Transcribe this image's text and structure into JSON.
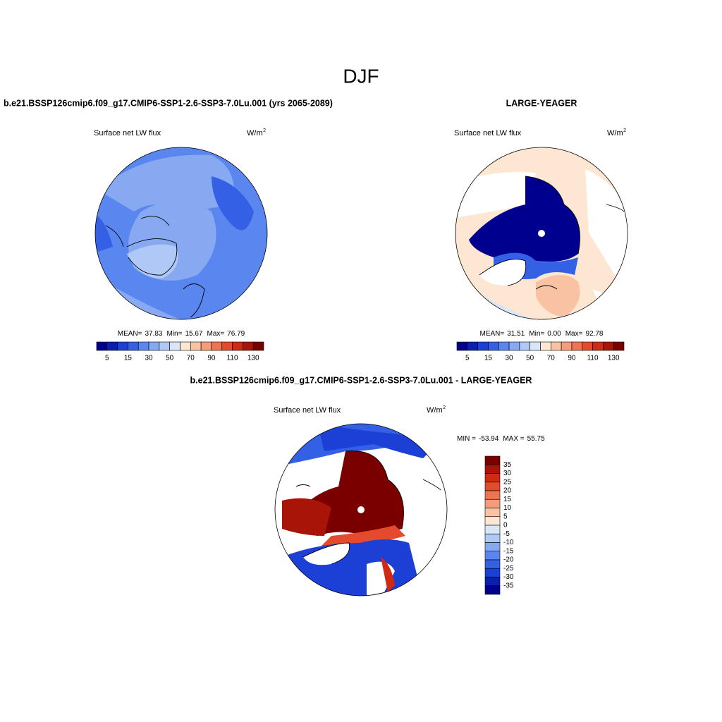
{
  "chart_data": [
    {
      "type": "map",
      "suptitle": "DJF",
      "title": "b.e21.BSSP126cmip6.f09_g17.CMIP6-SSP1-2.6-SSP3-7.0Lu.001 (yrs 2065-2089)",
      "left_label": "Surface net LW flux",
      "units": "W/m",
      "units_sup": "2",
      "stats": {
        "names": [
          "MEAN=",
          "Min=",
          "Max="
        ],
        "values": [
          37.83,
          15.67,
          76.79
        ]
      },
      "colorbar": {
        "orientation": "horizontal",
        "colors": [
          "#00008f",
          "#0a1fb0",
          "#1c3fd6",
          "#3460e6",
          "#5a86ef",
          "#86a9f2",
          "#b0c8f5",
          "#d9e6fa",
          "#fde6d2",
          "#f9c3a3",
          "#f59c78",
          "#ef7451",
          "#e44a2c",
          "#d02914",
          "#a81408",
          "#7a0000"
        ],
        "ticks": [
          5,
          15,
          30,
          50,
          70,
          90,
          110,
          130
        ]
      }
    },
    {
      "type": "map",
      "title": "LARGE-YEAGER",
      "left_label": "Surface net LW flux",
      "units": "W/m",
      "units_sup": "2",
      "stats": {
        "names": [
          "MEAN=",
          "Min=",
          "Max="
        ],
        "values": [
          31.51,
          0,
          92.78
        ],
        "value_labels": [
          "31.51",
          "0.00",
          "92.78"
        ]
      },
      "colorbar": {
        "orientation": "horizontal",
        "colors": [
          "#00008f",
          "#0a1fb0",
          "#1c3fd6",
          "#3460e6",
          "#5a86ef",
          "#86a9f2",
          "#b0c8f5",
          "#d9e6fa",
          "#fde6d2",
          "#f9c3a3",
          "#f59c78",
          "#ef7451",
          "#e44a2c",
          "#d02914",
          "#a81408",
          "#7a0000"
        ],
        "ticks": [
          5,
          15,
          30,
          50,
          70,
          90,
          110,
          130
        ]
      }
    },
    {
      "type": "map",
      "title": "b.e21.BSSP126cmip6.f09_g17.CMIP6-SSP1-2.6-SSP3-7.0Lu.001 - LARGE-YEAGER",
      "left_label": "Surface net LW flux",
      "units": "W/m",
      "units_sup": "2",
      "stats": {
        "names": [
          "MIN =",
          "MAX ="
        ],
        "values": [
          -53.94,
          55.75
        ]
      },
      "colorbar": {
        "orientation": "vertical",
        "colors": [
          "#7a0000",
          "#a81408",
          "#d02914",
          "#e44a2c",
          "#ef7451",
          "#f59c78",
          "#f9c3a3",
          "#fde6d2",
          "#d9e6fa",
          "#b0c8f5",
          "#86a9f2",
          "#5a86ef",
          "#3460e6",
          "#1c3fd6",
          "#0a1fb0",
          "#00008f"
        ],
        "ticks": [
          35,
          30,
          25,
          20,
          15,
          10,
          5,
          0,
          -5,
          -10,
          -15,
          -20,
          -25,
          -30,
          -35
        ]
      }
    }
  ]
}
